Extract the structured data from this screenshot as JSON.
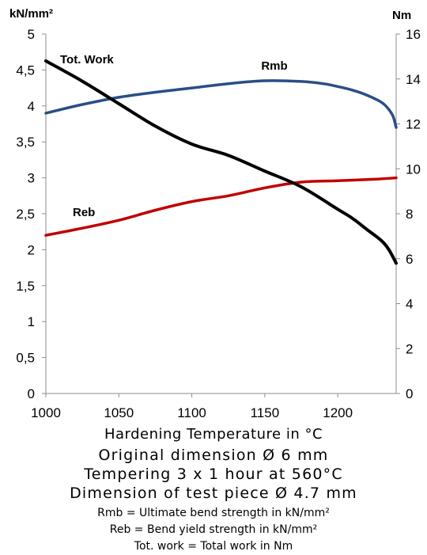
{
  "chart_data": {
    "type": "line",
    "left_axis_unit": "kN/mm²",
    "right_axis_unit": "Nm",
    "xlabel": "Hardening Temperature in °C",
    "xlim": [
      1000,
      1240
    ],
    "x_ticks": [
      "1000",
      "1050",
      "1100",
      "1150",
      "1200"
    ],
    "x_tick_values": [
      1000,
      1050,
      1100,
      1150,
      1200
    ],
    "ylim_left": [
      0,
      5
    ],
    "y_ticks_left": [
      "0",
      "0,5",
      "1",
      "1,5",
      "2",
      "2,5",
      "3",
      "3,5",
      "4",
      "4,5",
      "5"
    ],
    "y_tick_values_left": [
      0,
      0.5,
      1,
      1.5,
      2,
      2.5,
      3,
      3.5,
      4,
      4.5,
      5
    ],
    "ylim_right": [
      0,
      16
    ],
    "y_ticks_right": [
      "0",
      "2",
      "4",
      "6",
      "8",
      "10",
      "12",
      "14",
      "16"
    ],
    "y_tick_values_right": [
      0,
      2,
      4,
      6,
      8,
      10,
      12,
      14,
      16
    ],
    "grid": false,
    "series": [
      {
        "name": "Rmb",
        "axis": "left",
        "color": "#2a4e87",
        "x": [
          1000,
          1025,
          1050,
          1075,
          1100,
          1125,
          1150,
          1175,
          1190,
          1200,
          1210,
          1220,
          1230,
          1235,
          1238,
          1240
        ],
        "y": [
          3.9,
          4.02,
          4.12,
          4.19,
          4.25,
          4.31,
          4.35,
          4.34,
          4.31,
          4.27,
          4.22,
          4.15,
          4.05,
          3.95,
          3.85,
          3.7
        ]
      },
      {
        "name": "Reb",
        "axis": "left",
        "color": "#c00000",
        "x": [
          1000,
          1025,
          1050,
          1075,
          1100,
          1125,
          1150,
          1175,
          1200,
          1225,
          1240
        ],
        "y": [
          2.2,
          2.3,
          2.41,
          2.55,
          2.67,
          2.75,
          2.86,
          2.94,
          2.96,
          2.98,
          3.0
        ]
      },
      {
        "name": "Tot. Work",
        "axis": "right",
        "color": "#000000",
        "x": [
          1000,
          1025,
          1050,
          1075,
          1100,
          1125,
          1150,
          1175,
          1200,
          1210,
          1220,
          1230,
          1235,
          1240
        ],
        "y": [
          14.8,
          13.9,
          12.9,
          11.9,
          11.1,
          10.6,
          9.9,
          9.2,
          8.2,
          7.8,
          7.3,
          6.8,
          6.4,
          5.8
        ]
      }
    ]
  },
  "captions": {
    "original_dimension": "Original dimension Ø  6 mm",
    "tempering": "Tempering 3 x 1 hour at 560°C",
    "test_piece": "Dimension of test piece Ø 4.7 mm",
    "rmb_legend": "Rmb = Ultimate bend strength in kN/mm²",
    "reb_legend": "Reb =   Bend yield strength in kN/mm²",
    "totwork_legend": "Tot. work = Total work in Nm"
  }
}
